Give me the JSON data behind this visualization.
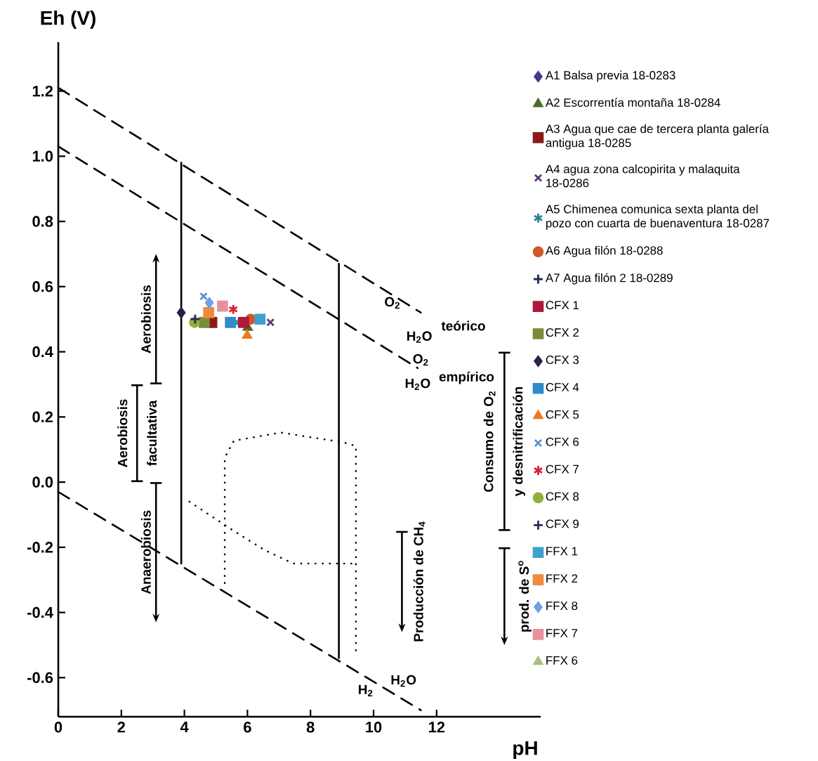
{
  "chart_data": {
    "type": "scatter",
    "xlabel": "pH",
    "ylabel": "Eh (V)",
    "xlim": [
      0,
      15.3
    ],
    "ylim": [
      -0.72,
      1.35
    ],
    "xticks": [
      0,
      2,
      4,
      6,
      8,
      10,
      12
    ],
    "yticks": [
      -0.6,
      -0.4,
      -0.2,
      {
        "value": 0,
        "label": "0.0"
      },
      0.2,
      0.4,
      0.6,
      0.8,
      {
        "value": 1,
        "label": "1.0"
      },
      1.2
    ],
    "grid": false,
    "legend": "right",
    "series": [
      {
        "name": "A1 Balsa previa 18-0283",
        "color": "#3d3a8c",
        "marker": "diamond",
        "x": [
          null
        ],
        "values": [
          null
        ]
      },
      {
        "name": "A2 Escorrentía montaña 18-0284",
        "color": "#4a6b2a",
        "marker": "triangle",
        "x": [
          6.01
        ],
        "values": [
          0.474
        ]
      },
      {
        "name": "A3 Agua que cae de tercera planta galería antigua 18-0285",
        "color": "#8b1a1a",
        "marker": "square",
        "x": [
          4.87
        ],
        "values": [
          0.49
        ]
      },
      {
        "name": "A4 agua zona calcopirita y malaquita 18-0286",
        "color": "#5b3a7a",
        "marker": "cross",
        "x": [
          6.73
        ],
        "values": [
          0.49
        ]
      },
      {
        "name": "A5 Chimenea comunica sexta planta del pozo con cuarta de buenaventura 18-0287",
        "color": "#2e7f9a",
        "x": [
          5.72
        ],
        "values": [
          0.49
        ]
      },
      {
        "name": "A6 Agua filón  18-0288",
        "color": "#d0572a",
        "marker": "circle",
        "x": [
          6.1
        ],
        "values": [
          0.5
        ]
      },
      {
        "name": "A7 Agua filón 2 18-0289",
        "color": "#1f2a5a",
        "marker": "plus",
        "x": [
          null
        ],
        "values": [
          null
        ]
      },
      {
        "name": "CFX 1",
        "color": "#b0183a",
        "marker": "square",
        "x": [
          5.88
        ],
        "values": [
          0.49
        ]
      },
      {
        "name": "CFX 2",
        "color": "#7a8c3a",
        "marker": "square",
        "x": [
          4.63
        ],
        "values": [
          0.49
        ]
      },
      {
        "name": "CFX 3",
        "color": "#2b1f4a",
        "marker": "diamond",
        "x": [
          3.9
        ],
        "values": [
          0.52
        ]
      },
      {
        "name": "CFX 4",
        "color": "#2f8cc8",
        "marker": "square",
        "x": [
          5.46
        ],
        "values": [
          0.49
        ]
      },
      {
        "name": "CFX 5",
        "color": "#f07820",
        "marker": "triangle",
        "x": [
          5.99
        ],
        "values": [
          0.45
        ]
      },
      {
        "name": "CFX 6",
        "color": "#5b8fd6",
        "marker": "cross",
        "x": [
          4.61
        ],
        "values": [
          0.57
        ]
      },
      {
        "name": "CFX 7",
        "color": "#d8203a",
        "x": [
          5.55
        ],
        "values": [
          0.53
        ]
      },
      {
        "name": "CFX 8",
        "color": "#8fb03a",
        "marker": "circle",
        "x": [
          4.32
        ],
        "values": [
          0.49
        ]
      },
      {
        "name": "CFX 9",
        "color": "#2b2b5a",
        "marker": "plus",
        "x": [
          4.34
        ],
        "values": [
          0.5
        ]
      },
      {
        "name": "FFX 1",
        "color": "#3fa0d0",
        "marker": "square",
        "x": [
          6.4
        ],
        "values": [
          0.5
        ]
      },
      {
        "name": "FFX 2",
        "color": "#f08a40",
        "marker": "square",
        "x": [
          4.77
        ],
        "values": [
          0.52
        ]
      },
      {
        "name": "FFX 8",
        "color": "#6fa0e8",
        "marker": "diamond",
        "x": [
          4.79
        ],
        "values": [
          0.55
        ]
      },
      {
        "name": "FFX 7",
        "color": "#e8909a",
        "marker": "square",
        "x": [
          5.21
        ],
        "values": [
          0.54
        ]
      },
      {
        "name": "FFX 6",
        "color": "#a8c080",
        "marker": "triangle",
        "x": [
          null
        ],
        "values": [
          null
        ]
      },
      {
        "type": "line",
        "color": "#000000",
        "line_style": "dashed",
        "x": [
          0,
          11.5
        ],
        "values": [
          1.21,
          0.52
        ]
      },
      {
        "type": "line",
        "color": "#000000",
        "line_style": "dashed",
        "x": [
          0,
          11.4
        ],
        "values": [
          1.03,
          0.35
        ]
      },
      {
        "type": "line",
        "color": "#000000",
        "line_style": "dashed",
        "x": [
          0,
          11.5
        ],
        "values": [
          -0.03,
          -0.7
        ]
      },
      {
        "type": "line",
        "color": "#000000",
        "line_style": "solid",
        "x": [
          3.9,
          3.9
        ],
        "values": [
          0.98,
          -0.25
        ]
      },
      {
        "type": "line",
        "color": "#000000",
        "line_style": "solid",
        "x": [
          8.9,
          8.9
        ],
        "values": [
          0.67,
          -0.54
        ]
      },
      {
        "type": "line",
        "color": "#000000",
        "line_style": "dotted",
        "x": [
          5.28,
          5.28,
          5.57,
          7.06,
          9.04,
          9.44,
          9.44
        ],
        "values": [
          -0.31,
          0.075,
          0.127,
          0.152,
          0.122,
          0.111,
          -0.53
        ]
      },
      {
        "type": "line",
        "color": "#000000",
        "line_style": "dotted",
        "x": [
          4.16,
          5.57,
          6.57,
          7.46,
          9.44
        ],
        "values": [
          -0.06,
          -0.15,
          -0.21,
          -0.25,
          -0.25
        ]
      }
    ],
    "annotations": [
      "O$_{2}$",
      "teórico",
      "H$_{2}$O",
      "O$_{2}$",
      "empírico",
      "H$_{2}$O",
      "H$_{2}$O",
      "H$_{2}$",
      "Aerobiosis",
      "Aerobiosis facultativa",
      "Anaerobiosis",
      "Producción de CH$_{4}$",
      "Consumo de O$_{2}$ y desnitrificación",
      "prod. de S$^{o}$"
    ]
  }
}
